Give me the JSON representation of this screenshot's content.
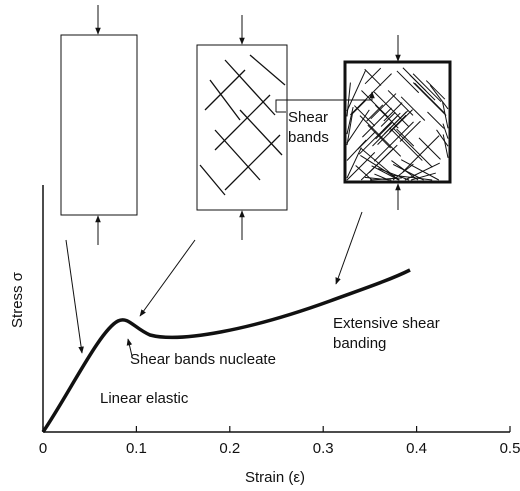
{
  "diagram": {
    "x_axis": {
      "label": "Strain (ε)",
      "ticks": [
        0,
        0.1,
        0.2,
        0.3,
        0.4,
        0.5
      ]
    },
    "y_axis": {
      "label": "Stress σ"
    },
    "annotations": {
      "shear_bands": [
        "Shear",
        "bands"
      ],
      "extensive": [
        "Extensive shear",
        "banding"
      ],
      "nucleate": "Shear bands nucleate",
      "linear": "Linear elastic"
    }
  }
}
